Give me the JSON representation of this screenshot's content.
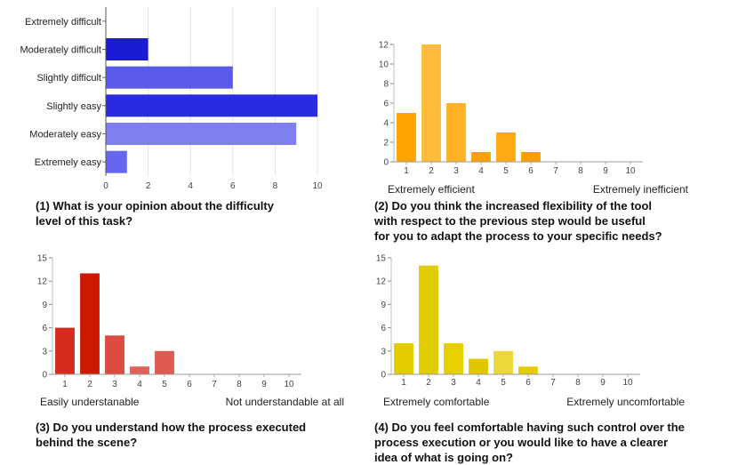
{
  "chart_data": [
    {
      "type": "bar",
      "orientation": "horizontal",
      "categories": [
        "Extremely difficult",
        "Moderately difficult",
        "Slightly difficult",
        "Slightly easy",
        "Moderately easy",
        "Extremely easy"
      ],
      "values": [
        0,
        2,
        6,
        10,
        9,
        1
      ],
      "colors": [
        "#2222dd",
        "#1b1bd6",
        "#5a5ae8",
        "#2a2ae0",
        "#7f7ff0",
        "#6666ee"
      ],
      "x_ticks": [
        "0",
        "2",
        "4",
        "6",
        "8",
        "10"
      ],
      "xlim": [
        0,
        10
      ],
      "caption": [
        "(1) What is your opinion about the difficulty",
        "level of this task?"
      ]
    },
    {
      "type": "bar",
      "categories": [
        "1",
        "2",
        "3",
        "4",
        "5",
        "6",
        "7",
        "8",
        "9",
        "10"
      ],
      "values": [
        5,
        12,
        6,
        1,
        3,
        1,
        0,
        0,
        0,
        0
      ],
      "colors": [
        "#ffa400",
        "#ffbc3a",
        "#ffb224",
        "#ffa000",
        "#ffaa14",
        "#ff9e00"
      ],
      "y_ticks": [
        "0",
        "2",
        "4",
        "6",
        "8",
        "10",
        "12"
      ],
      "ylim": [
        0,
        12
      ],
      "low_label": "Extremely efficient",
      "high_label": "Extremely inefficient",
      "caption": [
        "(2) Do you think the increased flexibility of the tool",
        "with respect to the previous step would be useful",
        "for you to adapt the process to your specific needs?"
      ]
    },
    {
      "type": "bar",
      "categories": [
        "1",
        "2",
        "3",
        "4",
        "5",
        "6",
        "7",
        "8",
        "9",
        "10"
      ],
      "values": [
        6,
        13,
        5,
        1,
        3,
        0,
        0,
        0,
        0,
        0
      ],
      "colors": [
        "#d52a1e",
        "#cc1a00",
        "#dc4a40",
        "#e0605a",
        "#e05a54"
      ],
      "y_ticks": [
        "0",
        "3",
        "6",
        "9",
        "12",
        "15"
      ],
      "ylim": [
        0,
        15
      ],
      "low_label": "Easily understanable",
      "high_label": "Not understandable at all",
      "caption": [
        "(3) Do you understand how the process executed",
        "behind the scene?"
      ]
    },
    {
      "type": "bar",
      "categories": [
        "1",
        "2",
        "3",
        "4",
        "5",
        "6",
        "7",
        "8",
        "9",
        "10"
      ],
      "values": [
        4,
        14,
        4,
        2,
        3,
        1,
        0,
        0,
        0,
        0
      ],
      "colors": [
        "#e4cc00",
        "#e0cc00",
        "#e6d000",
        "#e2c600",
        "#ecd836",
        "#e4cc00"
      ],
      "y_ticks": [
        "0",
        "3",
        "6",
        "9",
        "12",
        "15"
      ],
      "ylim": [
        0,
        15
      ],
      "low_label": "Extremely comfortable",
      "high_label": "Extremely uncomfortable",
      "caption": [
        "(4) Do you feel comfortable having such control over the",
        "process execution or you would like to have a clearer",
        "idea of what is going on?"
      ]
    }
  ]
}
